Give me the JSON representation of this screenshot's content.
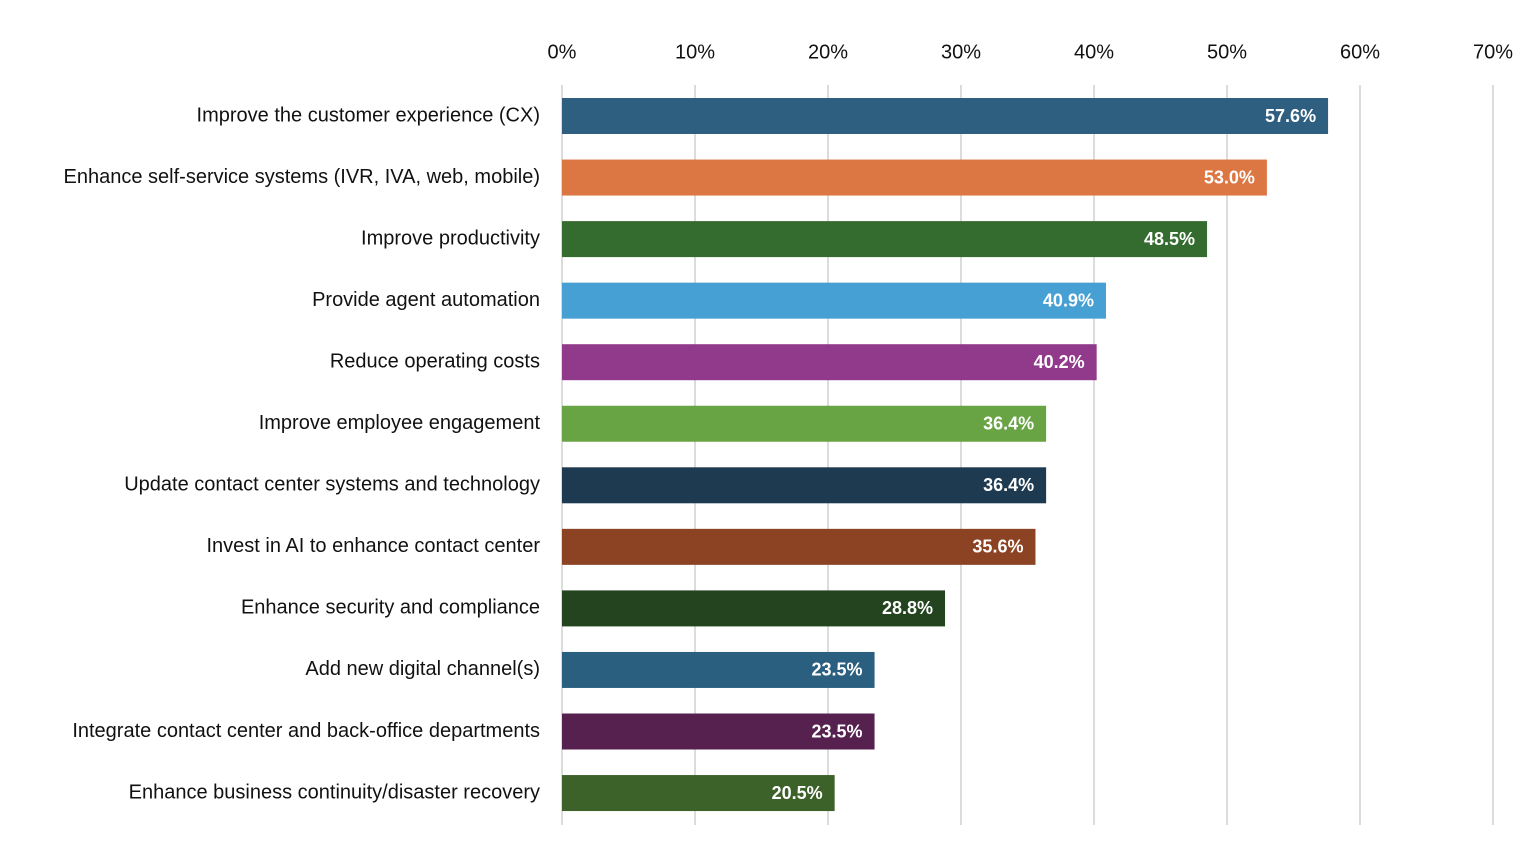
{
  "chart_data": {
    "type": "bar",
    "orientation": "horizontal",
    "categories": [
      "Improve the customer experience (CX)",
      "Enhance self-service systems (IVR, IVA, web, mobile)",
      "Improve productivity",
      "Provide agent automation",
      "Reduce operating costs",
      "Improve employee engagement",
      "Update contact center systems and technology",
      "Invest in AI to enhance contact center",
      "Enhance security and compliance",
      "Add new digital channel(s)",
      "Integrate contact center and back-office departments",
      "Enhance business continuity/disaster recovery"
    ],
    "values": [
      57.6,
      53.0,
      48.5,
      40.9,
      40.2,
      36.4,
      36.4,
      35.6,
      28.8,
      23.5,
      23.5,
      20.5
    ],
    "value_labels": [
      "57.6%",
      "53.0%",
      "48.5%",
      "40.9%",
      "40.2%",
      "36.4%",
      "36.4%",
      "35.6%",
      "28.8%",
      "23.5%",
      "23.5%",
      "20.5%"
    ],
    "colors": [
      "#2e5f80",
      "#dc7642",
      "#346b2e",
      "#46a0d4",
      "#913a8c",
      "#68a444",
      "#1e3a50",
      "#8b4323",
      "#23441f",
      "#2a5f80",
      "#56204f",
      "#3c6129"
    ],
    "xlim": [
      0,
      70
    ],
    "xticks": [
      {
        "value": 0,
        "label": "0%"
      },
      {
        "value": 10,
        "label": "10%"
      },
      {
        "value": 20,
        "label": "20%"
      },
      {
        "value": 30,
        "label": "30%"
      },
      {
        "value": 40,
        "label": "40%"
      },
      {
        "value": 50,
        "label": "50%"
      },
      {
        "value": 60,
        "label": "60%"
      },
      {
        "value": 70,
        "label": "70%"
      }
    ],
    "grid": true
  }
}
